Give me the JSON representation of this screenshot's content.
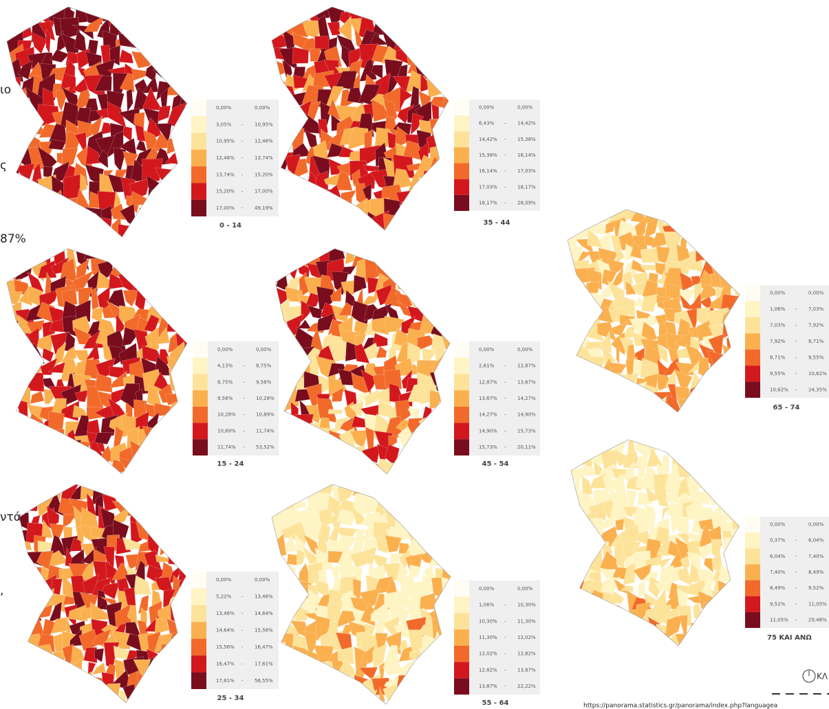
{
  "legend_colors": [
    "#fffdf3",
    "#fff4c4",
    "#fde39a",
    "#fbb04f",
    "#f26a2a",
    "#d3181d",
    "#790d1d"
  ],
  "panels": [
    {
      "label": "0 - 14",
      "rows": [
        [
          "0,00%",
          "0,00%"
        ],
        [
          "3,05%",
          "-",
          "10,95%"
        ],
        [
          "10,95%",
          "-",
          "12,46%"
        ],
        [
          "12,46%",
          "-",
          "13,74%"
        ],
        [
          "13,74%",
          "-",
          "15,20%"
        ],
        [
          "15,20%",
          "-",
          "17,00%"
        ],
        [
          "17,00%",
          "-",
          "49,19%"
        ]
      ]
    },
    {
      "label": "35 - 44",
      "rows": [
        [
          "0,00%",
          "0,00%"
        ],
        [
          "6,43%",
          "-",
          "14,42%"
        ],
        [
          "14,42%",
          "-",
          "15,38%"
        ],
        [
          "15,38%",
          "-",
          "16,14%"
        ],
        [
          "16,14%",
          "-",
          "17,03%"
        ],
        [
          "17,03%",
          "-",
          "18,17%"
        ],
        [
          "18,17%",
          "-",
          "28,09%"
        ]
      ]
    },
    {
      "label": "15 - 24",
      "rows": [
        [
          "0,00%",
          "0,00%"
        ],
        [
          "4,13%",
          "-",
          "8,75%"
        ],
        [
          "8,75%",
          "-",
          "9,58%"
        ],
        [
          "9,58%",
          "-",
          "10,28%"
        ],
        [
          "10,28%",
          "-",
          "10,89%"
        ],
        [
          "10,89%",
          "-",
          "11,74%"
        ],
        [
          "11,74%",
          "-",
          "53,52%"
        ]
      ]
    },
    {
      "label": "45 - 54",
      "rows": [
        [
          "0,00%",
          "0,00%"
        ],
        [
          "2,61%",
          "-",
          "12,87%"
        ],
        [
          "12,87%",
          "-",
          "13,67%"
        ],
        [
          "13,67%",
          "-",
          "14,27%"
        ],
        [
          "14,27%",
          "-",
          "14,90%"
        ],
        [
          "14,90%",
          "-",
          "15,73%"
        ],
        [
          "15,73%",
          "-",
          "20,11%"
        ]
      ]
    },
    {
      "label": "25 - 34",
      "rows": [
        [
          "0,00%",
          "0,00%"
        ],
        [
          "5,22%",
          "-",
          "13,46%"
        ],
        [
          "13,46%",
          "-",
          "14,64%"
        ],
        [
          "14,64%",
          "-",
          "15,56%"
        ],
        [
          "15,56%",
          "-",
          "16,47%"
        ],
        [
          "16,47%",
          "-",
          "17,61%"
        ],
        [
          "17,61%",
          "-",
          "56,55%"
        ]
      ]
    },
    {
      "label": "55 - 64",
      "rows": [
        [
          "0,00%",
          "0,00%"
        ],
        [
          "1,06%",
          "-",
          "10,30%"
        ],
        [
          "10,30%",
          "-",
          "11,30%"
        ],
        [
          "11,30%",
          "-",
          "12,02%"
        ],
        [
          "12,02%",
          "-",
          "12,82%"
        ],
        [
          "12,82%",
          "-",
          "13,87%"
        ],
        [
          "13,87%",
          "-",
          "22,22%"
        ]
      ]
    },
    {
      "label": "65 - 74",
      "rows": [
        [
          "0,00%",
          "0,00%"
        ],
        [
          "1,06%",
          "-",
          "7,03%"
        ],
        [
          "7,03%",
          "-",
          "7,92%"
        ],
        [
          "7,92%",
          "-",
          "8,71%"
        ],
        [
          "8,71%",
          "-",
          "9,55%"
        ],
        [
          "9,55%",
          "-",
          "10,62%"
        ],
        [
          "10,62%",
          "-",
          "24,35%"
        ]
      ]
    },
    {
      "label": "75 ΚΑΙ ΑΝΩ",
      "rows": [
        [
          "0,00%",
          "0,00%"
        ],
        [
          "0,37%",
          "-",
          "6,04%"
        ],
        [
          "6,04%",
          "-",
          "7,40%"
        ],
        [
          "7,40%",
          "-",
          "8,49%"
        ],
        [
          "8,49%",
          "-",
          "9,52%"
        ],
        [
          "9,52%",
          "-",
          "11,05%"
        ],
        [
          "11,05%",
          "-",
          "29,48%"
        ]
      ]
    }
  ],
  "fragments": [
    "ιο",
    "ς",
    "87%",
    "ντά",
    ","
  ],
  "compass": "ΚΛ",
  "source_url": "https://panorama.statistics.gr/panorama/index.php?languagea"
}
